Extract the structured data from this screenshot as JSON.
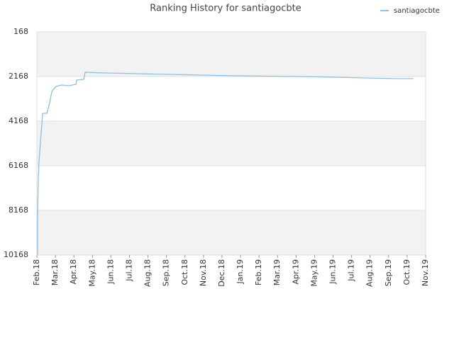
{
  "chart_data": {
    "type": "line",
    "title": "Ranking History for santiagocbte",
    "x": [
      0.04,
      0.04,
      0.08,
      0.11,
      0.19,
      0.27,
      0.31,
      0.54,
      0.69,
      0.8,
      0.84,
      1.03,
      1.34,
      1.72,
      2.11,
      2.15,
      2.53,
      2.61,
      3.68,
      5.44,
      7.2,
      8.93,
      10.69,
      12.41,
      14.18,
      15.94,
      17.7,
      19.46,
      20.34
    ],
    "series": [
      {
        "name": "santiagocbte",
        "color": "#88c0ee",
        "values": [
          10168,
          8263,
          6676,
          6041,
          5089,
          4295,
          3819,
          3819,
          3343,
          2866,
          2803,
          2612,
          2549,
          2581,
          2517,
          2327,
          2295,
          1978,
          2009,
          2041,
          2073,
          2105,
          2136,
          2152,
          2168,
          2200,
          2231,
          2263,
          2263
        ]
      }
    ],
    "xlim": [
      0,
      21
    ],
    "xticks": [
      {
        "value": 0,
        "label": "Feb.18"
      },
      {
        "value": 1,
        "label": "Mar.18"
      },
      {
        "value": 2,
        "label": "Apr.18"
      },
      {
        "value": 3,
        "label": "May.18"
      },
      {
        "value": 4,
        "label": "Jun.18"
      },
      {
        "value": 5,
        "label": "Jul.18"
      },
      {
        "value": 6,
        "label": "Aug.18"
      },
      {
        "value": 7,
        "label": "Sep.18"
      },
      {
        "value": 8,
        "label": "Oct.18"
      },
      {
        "value": 9,
        "label": "Nov.18"
      },
      {
        "value": 10,
        "label": "Dec.18"
      },
      {
        "value": 11,
        "label": "Jan.19"
      },
      {
        "value": 12,
        "label": "Feb.19"
      },
      {
        "value": 13,
        "label": "Mar.19"
      },
      {
        "value": 14,
        "label": "Apr.19"
      },
      {
        "value": 15,
        "label": "May.19"
      },
      {
        "value": 16,
        "label": "Jun.19"
      },
      {
        "value": 17,
        "label": "Jul.19"
      },
      {
        "value": 18,
        "label": "Aug.19"
      },
      {
        "value": 19,
        "label": "Sep.19"
      },
      {
        "value": 20,
        "label": "Oct.19"
      },
      {
        "value": 21,
        "label": "Nov.19"
      }
    ],
    "ylim": [
      10168,
      168
    ],
    "yticks": [
      168,
      2168,
      4168,
      6168,
      8168,
      10168
    ],
    "grid": true,
    "band_color": "#f2f2f2",
    "legend": "top-right"
  }
}
